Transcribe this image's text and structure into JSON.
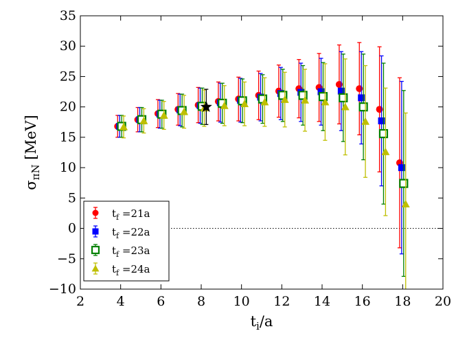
{
  "chart_data": {
    "type": "scatter",
    "xlabel": "t_i/a",
    "ylabel": "σ_πN [MeV]",
    "xlim": [
      2,
      20
    ],
    "ylim": [
      -10,
      35
    ],
    "xticks": [
      2,
      4,
      6,
      8,
      10,
      12,
      14,
      16,
      18,
      20
    ],
    "yticks": [
      -10,
      -5,
      0,
      5,
      10,
      15,
      20,
      25,
      30,
      35
    ],
    "zero_line": {
      "y": 0,
      "style": "dotted"
    },
    "legend_position": "lower-left",
    "series": [
      {
        "name": "t_f =21a",
        "label_main": "t",
        "label_sub": "f",
        "label_rest": " =21a",
        "color": "#ff0000",
        "marker": "circle",
        "x_offset": -0.15,
        "x": [
          4,
          5,
          6,
          7,
          8,
          9,
          10,
          11,
          12,
          13,
          14,
          15,
          16,
          17,
          18
        ],
        "y": [
          16.8,
          17.9,
          18.9,
          19.6,
          20.3,
          20.9,
          21.3,
          21.9,
          22.6,
          23.0,
          23.2,
          23.7,
          23.0,
          19.6,
          10.8
        ],
        "err": [
          1.8,
          2.0,
          2.3,
          2.6,
          2.9,
          3.2,
          3.6,
          4.0,
          4.3,
          4.8,
          5.6,
          6.5,
          7.6,
          10.3,
          14.0
        ]
      },
      {
        "name": "t_f =22a",
        "label_main": "t",
        "label_sub": "f",
        "label_rest": " =22a",
        "color": "#0000ff",
        "marker": "square",
        "x_offset": -0.05,
        "x": [
          4,
          5,
          6,
          7,
          8,
          9,
          10,
          11,
          12,
          13,
          14,
          15,
          16,
          17,
          18
        ],
        "y": [
          16.8,
          17.9,
          18.8,
          19.5,
          20.2,
          20.7,
          21.1,
          21.6,
          22.2,
          22.4,
          22.5,
          22.6,
          21.5,
          17.7,
          10.0
        ],
        "err": [
          1.8,
          2.0,
          2.3,
          2.6,
          2.9,
          3.2,
          3.6,
          3.9,
          4.3,
          4.8,
          5.5,
          6.5,
          7.6,
          10.7,
          14.2
        ]
      },
      {
        "name": "t_f =23a",
        "label_main": "t",
        "label_sub": "f",
        "label_rest": " =23a",
        "color": "#008000",
        "marker": "open-square",
        "x_offset": 0.05,
        "x": [
          4,
          5,
          6,
          7,
          8,
          9,
          10,
          11,
          12,
          13,
          14,
          15,
          16,
          17,
          18
        ],
        "y": [
          16.8,
          17.9,
          18.8,
          19.4,
          20.1,
          20.6,
          21.0,
          21.3,
          21.9,
          21.9,
          21.7,
          21.5,
          20.0,
          15.6,
          7.4
        ],
        "err": [
          1.8,
          2.0,
          2.3,
          2.7,
          3.0,
          3.3,
          3.6,
          4.0,
          4.3,
          4.9,
          5.6,
          7.2,
          8.7,
          11.6,
          15.3
        ]
      },
      {
        "name": "t_f =24a",
        "label_main": "t",
        "label_sub": "f",
        "label_rest": " =24a",
        "color": "#bfbf00",
        "marker": "triangle",
        "x_offset": 0.15,
        "x": [
          4,
          5,
          6,
          7,
          8,
          9,
          10,
          11,
          12,
          13,
          14,
          15,
          16,
          17,
          18
        ],
        "y": [
          16.7,
          17.7,
          18.6,
          19.2,
          19.8,
          20.2,
          20.5,
          20.8,
          21.2,
          21.1,
          20.8,
          20.0,
          17.6,
          12.6,
          4.0
        ],
        "err": [
          1.8,
          2.0,
          2.3,
          2.7,
          3.0,
          3.3,
          3.6,
          4.0,
          4.5,
          5.1,
          6.3,
          7.9,
          9.2,
          10.5,
          15.0
        ]
      }
    ],
    "highlight": {
      "marker": "star",
      "color": "#000000",
      "x": 8.25,
      "y": 20.0,
      "err": 2.9
    }
  }
}
